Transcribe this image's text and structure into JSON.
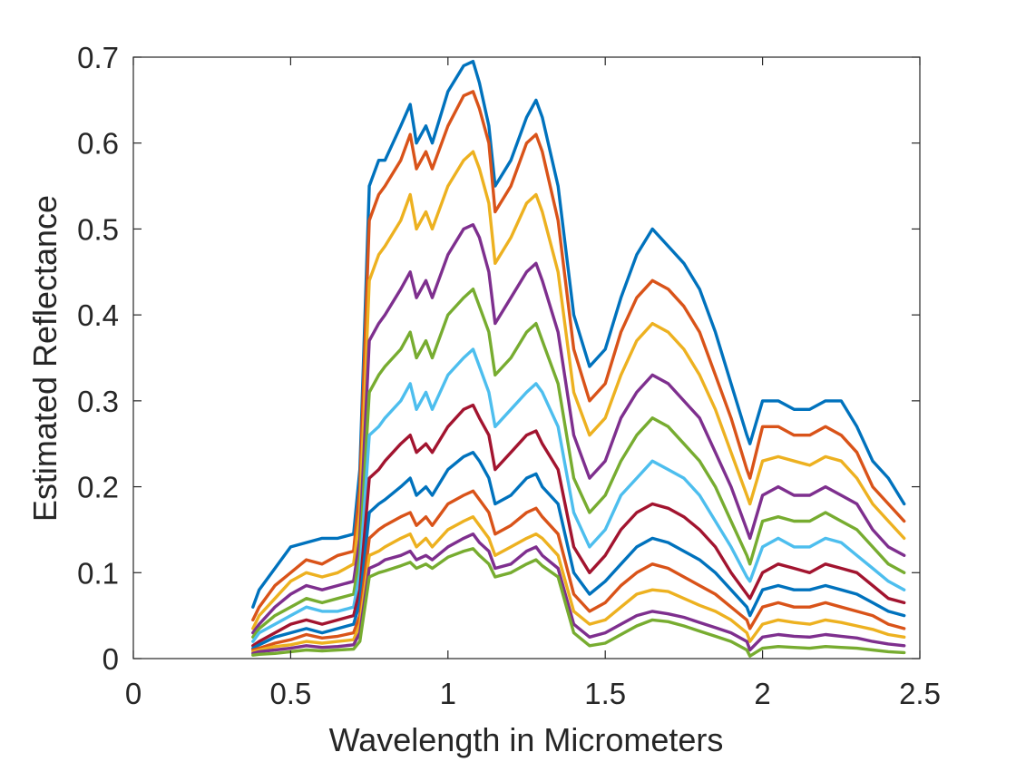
{
  "chart_data": {
    "type": "line",
    "title": "",
    "xlabel": "Wavelength in Micrometers",
    "ylabel": "Estimated Reflectance",
    "xlim": [
      0,
      2.5
    ],
    "ylim": [
      0,
      0.7
    ],
    "xticks": [
      0,
      0.5,
      1,
      1.5,
      2,
      2.5
    ],
    "xtick_labels": [
      "0",
      "0.5",
      "1",
      "1.5",
      "2",
      "2.5"
    ],
    "yticks": [
      0,
      0.1,
      0.2,
      0.3,
      0.4,
      0.5,
      0.6,
      0.7
    ],
    "ytick_labels": [
      "0",
      "0.1",
      "0.2",
      "0.3",
      "0.4",
      "0.5",
      "0.6",
      "0.7"
    ],
    "grid": false,
    "legend": "none",
    "box": true,
    "colors": [
      "#0072BD",
      "#D95319",
      "#EDB120",
      "#7E2F8E",
      "#77AC30",
      "#4DBEEE",
      "#A2142F"
    ],
    "x": [
      0.38,
      0.4,
      0.45,
      0.5,
      0.55,
      0.6,
      0.65,
      0.7,
      0.72,
      0.75,
      0.78,
      0.8,
      0.85,
      0.88,
      0.9,
      0.93,
      0.95,
      1.0,
      1.05,
      1.08,
      1.1,
      1.13,
      1.15,
      1.2,
      1.25,
      1.28,
      1.3,
      1.35,
      1.4,
      1.45,
      1.5,
      1.55,
      1.6,
      1.65,
      1.7,
      1.75,
      1.8,
      1.85,
      1.9,
      1.95,
      1.96,
      2.0,
      2.05,
      2.1,
      2.15,
      2.2,
      2.25,
      2.3,
      2.35,
      2.4,
      2.45
    ],
    "series": [
      {
        "values": [
          0.06,
          0.08,
          0.105,
          0.13,
          0.135,
          0.14,
          0.14,
          0.145,
          0.22,
          0.55,
          0.58,
          0.58,
          0.62,
          0.645,
          0.6,
          0.62,
          0.6,
          0.66,
          0.69,
          0.695,
          0.67,
          0.62,
          0.55,
          0.58,
          0.63,
          0.65,
          0.63,
          0.55,
          0.4,
          0.34,
          0.36,
          0.42,
          0.47,
          0.5,
          0.48,
          0.46,
          0.43,
          0.38,
          0.32,
          0.26,
          0.25,
          0.3,
          0.3,
          0.29,
          0.29,
          0.3,
          0.3,
          0.27,
          0.23,
          0.21,
          0.18
        ]
      },
      {
        "values": [
          0.045,
          0.06,
          0.085,
          0.1,
          0.115,
          0.11,
          0.12,
          0.125,
          0.2,
          0.51,
          0.54,
          0.55,
          0.58,
          0.61,
          0.57,
          0.59,
          0.57,
          0.62,
          0.655,
          0.66,
          0.64,
          0.6,
          0.52,
          0.55,
          0.6,
          0.61,
          0.59,
          0.51,
          0.36,
          0.3,
          0.32,
          0.38,
          0.42,
          0.44,
          0.43,
          0.41,
          0.38,
          0.33,
          0.28,
          0.22,
          0.21,
          0.27,
          0.27,
          0.26,
          0.26,
          0.27,
          0.26,
          0.24,
          0.2,
          0.18,
          0.16
        ]
      },
      {
        "values": [
          0.035,
          0.05,
          0.07,
          0.09,
          0.1,
          0.095,
          0.1,
          0.11,
          0.17,
          0.44,
          0.47,
          0.48,
          0.51,
          0.54,
          0.5,
          0.52,
          0.5,
          0.55,
          0.58,
          0.59,
          0.57,
          0.53,
          0.46,
          0.49,
          0.53,
          0.54,
          0.52,
          0.45,
          0.31,
          0.26,
          0.28,
          0.33,
          0.37,
          0.39,
          0.38,
          0.36,
          0.33,
          0.29,
          0.24,
          0.19,
          0.18,
          0.23,
          0.235,
          0.23,
          0.225,
          0.235,
          0.23,
          0.21,
          0.18,
          0.16,
          0.14
        ]
      },
      {
        "values": [
          0.03,
          0.04,
          0.06,
          0.075,
          0.085,
          0.08,
          0.085,
          0.09,
          0.14,
          0.37,
          0.39,
          0.4,
          0.43,
          0.45,
          0.42,
          0.44,
          0.42,
          0.47,
          0.5,
          0.505,
          0.49,
          0.45,
          0.39,
          0.42,
          0.45,
          0.46,
          0.44,
          0.38,
          0.26,
          0.21,
          0.23,
          0.28,
          0.31,
          0.33,
          0.32,
          0.3,
          0.28,
          0.24,
          0.2,
          0.15,
          0.14,
          0.19,
          0.2,
          0.19,
          0.19,
          0.2,
          0.19,
          0.18,
          0.15,
          0.13,
          0.12
        ]
      },
      {
        "values": [
          0.025,
          0.035,
          0.05,
          0.06,
          0.07,
          0.065,
          0.07,
          0.075,
          0.12,
          0.31,
          0.33,
          0.34,
          0.36,
          0.38,
          0.35,
          0.37,
          0.35,
          0.4,
          0.42,
          0.43,
          0.41,
          0.38,
          0.33,
          0.35,
          0.38,
          0.39,
          0.37,
          0.32,
          0.21,
          0.17,
          0.19,
          0.23,
          0.26,
          0.28,
          0.27,
          0.25,
          0.23,
          0.2,
          0.16,
          0.12,
          0.11,
          0.16,
          0.165,
          0.16,
          0.16,
          0.17,
          0.16,
          0.15,
          0.13,
          0.11,
          0.1
        ]
      },
      {
        "values": [
          0.02,
          0.03,
          0.04,
          0.05,
          0.06,
          0.055,
          0.055,
          0.06,
          0.1,
          0.26,
          0.27,
          0.28,
          0.3,
          0.32,
          0.29,
          0.31,
          0.29,
          0.33,
          0.35,
          0.36,
          0.34,
          0.31,
          0.27,
          0.29,
          0.31,
          0.32,
          0.31,
          0.27,
          0.17,
          0.13,
          0.15,
          0.19,
          0.21,
          0.23,
          0.22,
          0.21,
          0.19,
          0.16,
          0.13,
          0.095,
          0.09,
          0.13,
          0.14,
          0.13,
          0.13,
          0.14,
          0.135,
          0.12,
          0.105,
          0.09,
          0.08
        ]
      },
      {
        "values": [
          0.015,
          0.02,
          0.03,
          0.04,
          0.045,
          0.04,
          0.045,
          0.05,
          0.08,
          0.21,
          0.22,
          0.23,
          0.25,
          0.26,
          0.24,
          0.25,
          0.24,
          0.27,
          0.29,
          0.295,
          0.28,
          0.26,
          0.22,
          0.24,
          0.26,
          0.265,
          0.25,
          0.22,
          0.13,
          0.1,
          0.12,
          0.15,
          0.17,
          0.18,
          0.175,
          0.165,
          0.15,
          0.13,
          0.1,
          0.075,
          0.07,
          0.1,
          0.11,
          0.105,
          0.1,
          0.11,
          0.105,
          0.1,
          0.085,
          0.07,
          0.065
        ]
      },
      {
        "values": [
          0.012,
          0.016,
          0.025,
          0.03,
          0.035,
          0.03,
          0.035,
          0.04,
          0.065,
          0.17,
          0.18,
          0.185,
          0.2,
          0.21,
          0.19,
          0.2,
          0.19,
          0.22,
          0.235,
          0.24,
          0.23,
          0.21,
          0.18,
          0.19,
          0.21,
          0.215,
          0.2,
          0.18,
          0.1,
          0.075,
          0.09,
          0.11,
          0.13,
          0.14,
          0.135,
          0.125,
          0.115,
          0.1,
          0.08,
          0.06,
          0.05,
          0.08,
          0.085,
          0.08,
          0.08,
          0.085,
          0.08,
          0.075,
          0.065,
          0.055,
          0.05
        ]
      },
      {
        "values": [
          0.01,
          0.012,
          0.018,
          0.022,
          0.028,
          0.024,
          0.026,
          0.03,
          0.05,
          0.14,
          0.15,
          0.155,
          0.165,
          0.17,
          0.155,
          0.165,
          0.155,
          0.18,
          0.19,
          0.195,
          0.185,
          0.17,
          0.145,
          0.155,
          0.17,
          0.175,
          0.165,
          0.145,
          0.075,
          0.055,
          0.065,
          0.085,
          0.1,
          0.11,
          0.105,
          0.095,
          0.085,
          0.075,
          0.06,
          0.045,
          0.035,
          0.06,
          0.065,
          0.06,
          0.06,
          0.065,
          0.06,
          0.055,
          0.05,
          0.04,
          0.035
        ]
      },
      {
        "values": [
          0.008,
          0.01,
          0.014,
          0.016,
          0.02,
          0.018,
          0.02,
          0.022,
          0.04,
          0.12,
          0.125,
          0.13,
          0.14,
          0.145,
          0.13,
          0.14,
          0.13,
          0.15,
          0.16,
          0.165,
          0.155,
          0.14,
          0.12,
          0.13,
          0.14,
          0.145,
          0.14,
          0.12,
          0.055,
          0.04,
          0.045,
          0.06,
          0.075,
          0.08,
          0.078,
          0.07,
          0.062,
          0.055,
          0.045,
          0.03,
          0.02,
          0.04,
          0.045,
          0.042,
          0.04,
          0.045,
          0.042,
          0.038,
          0.034,
          0.028,
          0.025
        ]
      },
      {
        "values": [
          0.006,
          0.008,
          0.01,
          0.012,
          0.015,
          0.013,
          0.014,
          0.016,
          0.03,
          0.105,
          0.11,
          0.115,
          0.12,
          0.125,
          0.115,
          0.12,
          0.115,
          0.13,
          0.14,
          0.145,
          0.135,
          0.125,
          0.105,
          0.11,
          0.125,
          0.13,
          0.12,
          0.105,
          0.04,
          0.025,
          0.03,
          0.04,
          0.05,
          0.055,
          0.052,
          0.048,
          0.042,
          0.036,
          0.03,
          0.02,
          0.01,
          0.025,
          0.028,
          0.026,
          0.025,
          0.028,
          0.026,
          0.024,
          0.02,
          0.017,
          0.015
        ]
      },
      {
        "values": [
          0.004,
          0.005,
          0.006,
          0.008,
          0.01,
          0.009,
          0.01,
          0.011,
          0.02,
          0.095,
          0.1,
          0.102,
          0.108,
          0.112,
          0.105,
          0.11,
          0.105,
          0.118,
          0.125,
          0.128,
          0.12,
          0.11,
          0.095,
          0.1,
          0.11,
          0.115,
          0.108,
          0.095,
          0.03,
          0.015,
          0.018,
          0.028,
          0.038,
          0.045,
          0.043,
          0.038,
          0.032,
          0.026,
          0.02,
          0.01,
          0.003,
          0.012,
          0.014,
          0.013,
          0.012,
          0.014,
          0.013,
          0.012,
          0.01,
          0.008,
          0.007
        ]
      }
    ]
  }
}
